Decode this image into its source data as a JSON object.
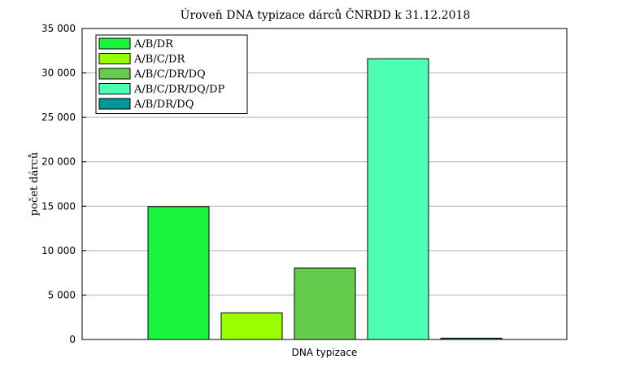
{
  "chart_data": {
    "type": "bar",
    "title": "Úroveň DNA typizace dárců ČNRDD k 31.12.2018",
    "xlabel": "DNA typizace",
    "ylabel": "počet dárců",
    "ylim": [
      0,
      35000
    ],
    "yticks": [
      0,
      5000,
      10000,
      15000,
      20000,
      25000,
      30000,
      35000
    ],
    "ytick_labels": [
      "0",
      "5 000",
      "10 000",
      "15 000",
      "20 000",
      "25 000",
      "30 000",
      "35 000"
    ],
    "grid": "horizontal",
    "legend_position": "top-left",
    "series": [
      {
        "name": "A/B/DR",
        "value": 14950,
        "color": "#19f53c"
      },
      {
        "name": "A/B/C/DR",
        "value": 3000,
        "color": "#99ff00"
      },
      {
        "name": "A/B/C/DR/DQ",
        "value": 8050,
        "color": "#66cc4d"
      },
      {
        "name": "A/B/C/DR/DQ/DP",
        "value": 31600,
        "color": "#4dffb3"
      },
      {
        "name": "A/B/DR/DQ",
        "value": 150,
        "color": "#009999"
      }
    ]
  }
}
